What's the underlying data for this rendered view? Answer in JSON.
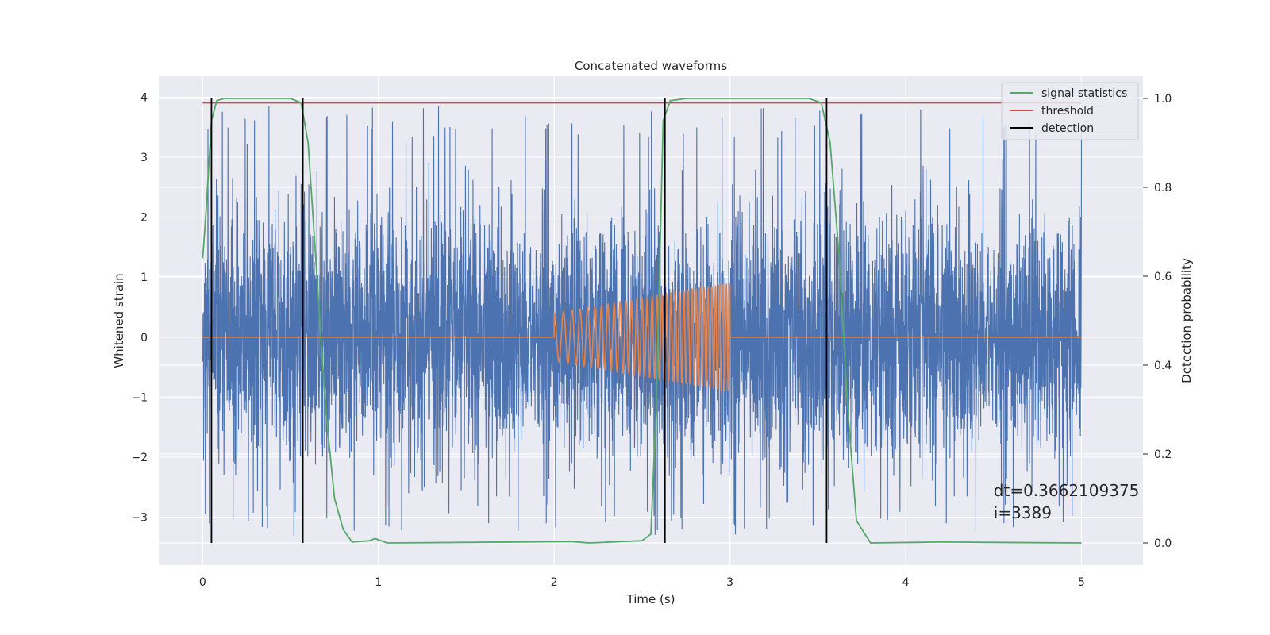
{
  "chart_data": {
    "type": "line",
    "title": "Concatenated waveforms",
    "xlabel": "Time (s)",
    "ylabel": "Whitened strain",
    "y2label": "Detection probability",
    "xlim": [
      -0.25,
      5.35
    ],
    "ylim": [
      -3.8,
      4.35
    ],
    "y2lim": [
      -0.05,
      1.05
    ],
    "x_ticks": [
      0,
      1,
      2,
      3,
      4,
      5
    ],
    "x_tick_labels": [
      "0",
      "1",
      "2",
      "3",
      "4",
      "5"
    ],
    "y_ticks": [
      -3,
      -2,
      -1,
      0,
      1,
      2,
      3,
      4
    ],
    "y_tick_labels": [
      "−3",
      "−2",
      "−1",
      "0",
      "1",
      "2",
      "3",
      "4"
    ],
    "y2_ticks": [
      0.0,
      0.2,
      0.4,
      0.6,
      0.8,
      1.0
    ],
    "y2_tick_labels": [
      "0.0",
      "0.2",
      "0.4",
      "0.6",
      "0.8",
      "1.0"
    ],
    "grid": true,
    "legend_position": "top-right",
    "series": [
      {
        "name": "",
        "kind": "noise",
        "axis": "left",
        "color": "#4c72b0",
        "x_range": [
          0,
          5
        ],
        "approx_std": 1.0,
        "approx_min": -3.3,
        "approx_max": 3.9
      },
      {
        "name": "",
        "kind": "chirp",
        "axis": "left",
        "color": "#dd8452",
        "x_range": [
          0,
          5
        ],
        "active_range": [
          2,
          3
        ],
        "amplitude_start": 0.4,
        "amplitude_end": 0.9,
        "frequency_start_hz": 18,
        "frequency_end_hz": 50
      },
      {
        "name": "signal statistics",
        "axis": "right",
        "color": "#55a868",
        "x": [
          0.0,
          0.02,
          0.05,
          0.08,
          0.12,
          0.5,
          0.56,
          0.6,
          0.65,
          0.7,
          0.75,
          0.8,
          0.85,
          0.95,
          0.98,
          1.05,
          2.1,
          2.2,
          2.5,
          2.55,
          2.58,
          2.62,
          2.66,
          2.75,
          3.45,
          3.52,
          3.57,
          3.62,
          3.67,
          3.72,
          3.8,
          4.2,
          5.0
        ],
        "y": [
          0.64,
          0.75,
          0.95,
          0.995,
          1.0,
          1.0,
          0.99,
          0.9,
          0.6,
          0.3,
          0.1,
          0.03,
          0.002,
          0.005,
          0.01,
          0.0,
          0.003,
          0.0,
          0.005,
          0.02,
          0.3,
          0.95,
          0.995,
          1.0,
          1.0,
          0.99,
          0.9,
          0.65,
          0.3,
          0.05,
          0.0,
          0.002,
          0.0
        ]
      },
      {
        "name": "threshold",
        "axis": "right",
        "color": "#c44e52",
        "x": [
          0,
          5
        ],
        "y": [
          0.99,
          0.99
        ]
      },
      {
        "name": "detection",
        "axis": "right",
        "color": "#000000",
        "type": "vlines",
        "x": [
          0.05,
          0.57,
          2.63,
          3.55
        ],
        "ymin": 0.0,
        "ymax": 1.0
      }
    ],
    "annotations": [
      {
        "text": "dt=0.3662109375",
        "x": 4.5,
        "y": -2.65
      },
      {
        "text": " i=3389",
        "x": 4.5,
        "y": -3.02
      }
    ]
  },
  "colors": {
    "plot_background": "#eaeaf2",
    "grid": "#ffffff",
    "text": "#262626"
  }
}
